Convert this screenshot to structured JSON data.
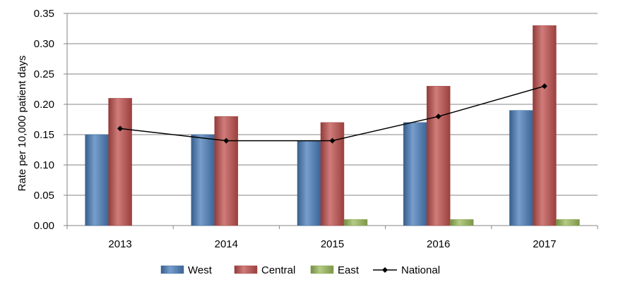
{
  "chart_data": {
    "type": "bar",
    "title": "",
    "xlabel": "",
    "ylabel": "Rate per 10,000 patient days",
    "ylim": [
      0,
      0.35
    ],
    "yticks": [
      "0.00",
      "0.05",
      "0.10",
      "0.15",
      "0.20",
      "0.25",
      "0.30",
      "0.35"
    ],
    "categories": [
      "2013",
      "2014",
      "2015",
      "2016",
      "2017"
    ],
    "grid": true,
    "legend_position": "bottom",
    "series": [
      {
        "name": "West",
        "kind": "bar",
        "color": "#4a7ebb",
        "values": [
          0.15,
          0.15,
          0.14,
          0.17,
          0.19
        ]
      },
      {
        "name": "Central",
        "kind": "bar",
        "color": "#c0504d",
        "values": [
          0.21,
          0.18,
          0.17,
          0.23,
          0.33
        ]
      },
      {
        "name": "East",
        "kind": "bar",
        "color": "#9bbb59",
        "values": [
          0.0,
          0.0,
          0.01,
          0.01,
          0.01
        ]
      },
      {
        "name": "National",
        "kind": "line",
        "color": "#000000",
        "values": [
          0.16,
          0.14,
          0.14,
          0.18,
          0.23
        ]
      }
    ]
  }
}
